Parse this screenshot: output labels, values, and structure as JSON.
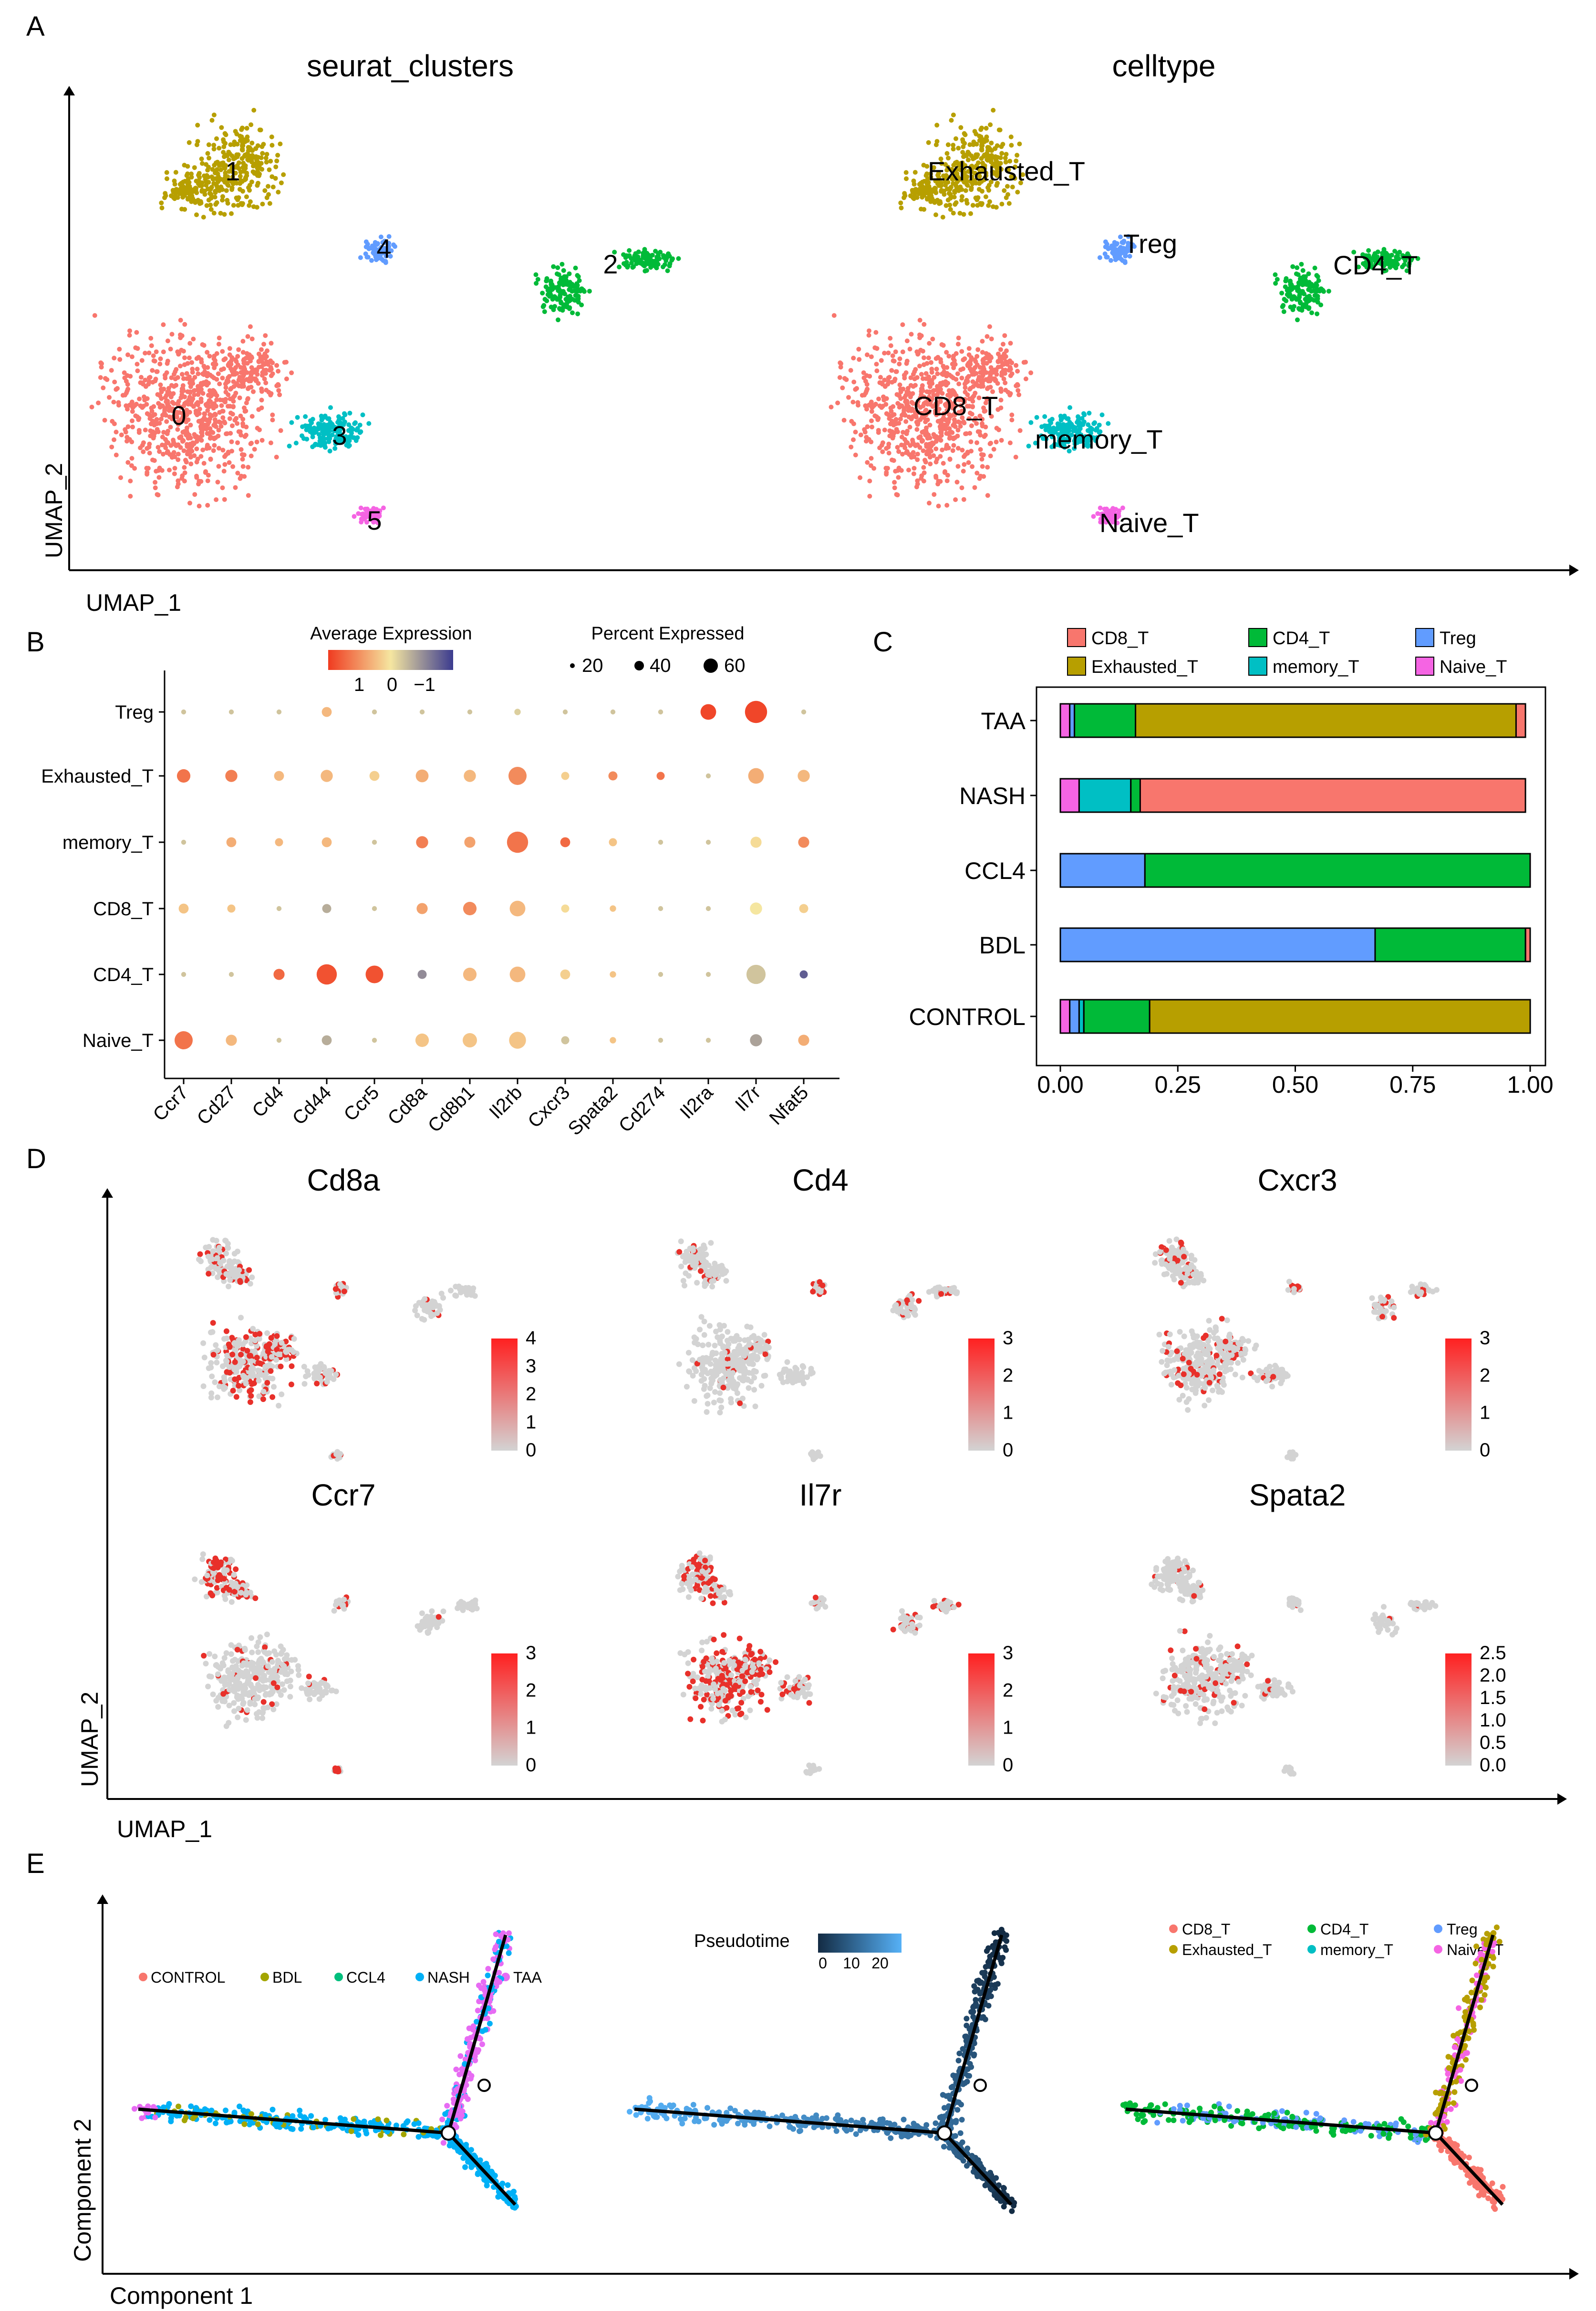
{
  "panels": {
    "A": "A",
    "B": "B",
    "C": "C",
    "D": "D",
    "E": "E"
  },
  "colors": {
    "CD8_T": "#F8766D",
    "Exhausted_T": "#B79F00",
    "CD4_T": "#00BA38",
    "memory_T": "#00BFC4",
    "Treg": "#619CFF",
    "Naive_T": "#F564E3",
    "grey": "#d3d3d3",
    "red": "#e8302a"
  },
  "chart_data": [
    {
      "id": "A-left",
      "type": "scatter",
      "title": "seurat_clusters",
      "xlabel": "UMAP_1",
      "ylabel": "UMAP_2",
      "cluster_labels": [
        {
          "label": "0",
          "cell": "CD8_T"
        },
        {
          "label": "1",
          "cell": "Exhausted_T"
        },
        {
          "label": "2",
          "cell": "CD4_T"
        },
        {
          "label": "3",
          "cell": "memory_T"
        },
        {
          "label": "4",
          "cell": "Treg"
        },
        {
          "label": "5",
          "cell": "Naive_T"
        }
      ]
    },
    {
      "id": "A-right",
      "type": "scatter",
      "title": "celltype",
      "cluster_labels": [
        {
          "label": "CD8_T",
          "cell": "CD8_T"
        },
        {
          "label": "Exhausted_T",
          "cell": "Exhausted_T"
        },
        {
          "label": "CD4_T",
          "cell": "CD4_T"
        },
        {
          "label": "memory_T",
          "cell": "memory_T"
        },
        {
          "label": "Treg",
          "cell": "Treg"
        },
        {
          "label": "Naive_T",
          "cell": "Naive_T"
        }
      ]
    },
    {
      "id": "B",
      "type": "dot",
      "legend_expr_title": "Average Expression",
      "legend_expr_ticks": [
        "1",
        "0",
        "−1"
      ],
      "legend_pct_title": "Percent Expressed",
      "legend_pct_ticks": [
        "20",
        "40",
        "60"
      ],
      "rows": [
        "Treg",
        "Exhausted_T",
        "memory_T",
        "CD8_T",
        "CD4_T",
        "Naive_T"
      ],
      "genes": [
        "Ccr7",
        "Cd27",
        "Cd4",
        "Cd44",
        "Ccr5",
        "Cd8a",
        "Cd8b1",
        "Il2rb",
        "Cxcr3",
        "Spata2",
        "Cd274",
        "Il2ra",
        "Il7r",
        "Nfat5"
      ],
      "expr": [
        [
          -0.3,
          -0.3,
          -0.3,
          0.4,
          -0.3,
          -0.3,
          -0.3,
          -0.2,
          -0.3,
          -0.3,
          -0.3,
          1.4,
          1.4,
          -0.3
        ],
        [
          1.0,
          0.9,
          0.4,
          0.4,
          0.2,
          0.5,
          0.4,
          0.8,
          0.2,
          0.8,
          1.0,
          -0.3,
          0.5,
          0.4
        ],
        [
          -0.3,
          0.5,
          0.4,
          0.4,
          -0.3,
          0.9,
          0.6,
          1.0,
          1.1,
          0.3,
          -0.3,
          -0.3,
          0.1,
          0.8
        ],
        [
          0.3,
          0.3,
          -0.3,
          -0.5,
          -0.3,
          0.6,
          0.8,
          0.4,
          0.1,
          0.3,
          -0.3,
          -0.3,
          0.0,
          0.2
        ],
        [
          -0.3,
          -0.3,
          1.1,
          1.3,
          1.3,
          -0.8,
          0.4,
          0.4,
          0.2,
          0.3,
          -0.3,
          -0.3,
          -0.3,
          -1.2
        ],
        [
          1.0,
          0.4,
          -0.3,
          -0.5,
          -0.3,
          0.3,
          0.3,
          0.3,
          -0.3,
          0.3,
          -0.3,
          -0.3,
          -0.6,
          0.5
        ]
      ],
      "pct": [
        [
          3,
          3,
          3,
          12,
          3,
          3,
          3,
          5,
          3,
          3,
          3,
          30,
          60,
          3
        ],
        [
          22,
          18,
          12,
          18,
          12,
          20,
          18,
          40,
          8,
          10,
          8,
          3,
          30,
          18
        ],
        [
          3,
          12,
          8,
          12,
          3,
          18,
          15,
          55,
          12,
          8,
          3,
          3,
          15,
          15
        ],
        [
          12,
          8,
          3,
          10,
          3,
          15,
          22,
          30,
          8,
          5,
          3,
          3,
          18,
          10
        ],
        [
          3,
          3,
          15,
          50,
          38,
          10,
          22,
          30,
          12,
          5,
          3,
          3,
          45,
          8
        ],
        [
          40,
          15,
          3,
          12,
          3,
          22,
          25,
          35,
          8,
          5,
          3,
          3,
          18,
          15
        ]
      ]
    },
    {
      "id": "C",
      "type": "bar",
      "orientation": "horizontal",
      "stacked": true,
      "categories": [
        "TAA",
        "NASH",
        "CCL4",
        "BDL",
        "CONTROL"
      ],
      "stack_order": [
        "Naive_T",
        "Treg",
        "memory_T",
        "CD4_T",
        "Exhausted_T",
        "CD8_T"
      ],
      "series": [
        {
          "name": "CD8_T",
          "values": [
            0.02,
            0.82,
            0.0,
            0.01,
            0.0
          ]
        },
        {
          "name": "Exhausted_T",
          "values": [
            0.81,
            0.0,
            0.0,
            0.0,
            0.81
          ]
        },
        {
          "name": "CD4_T",
          "values": [
            0.13,
            0.02,
            0.82,
            0.32,
            0.14
          ]
        },
        {
          "name": "memory_T",
          "values": [
            0.0,
            0.11,
            0.0,
            0.0,
            0.01
          ]
        },
        {
          "name": "Treg",
          "values": [
            0.01,
            0.0,
            0.18,
            0.67,
            0.02
          ]
        },
        {
          "name": "Naive_T",
          "values": [
            0.02,
            0.04,
            0.0,
            0.0,
            0.02
          ]
        }
      ],
      "legend_labels": [
        "CD8_T",
        "CD4_T",
        "Treg",
        "Exhausted_T",
        "memory_T",
        "Naive_T"
      ],
      "xticks": [
        "0.00",
        "0.25",
        "0.50",
        "0.75",
        "1.00"
      ],
      "xlim": [
        0,
        1
      ]
    },
    {
      "id": "D",
      "type": "scatter",
      "xlabel": "UMAP_1",
      "ylabel": "UMAP_2",
      "features": [
        {
          "gene": "Cd8a",
          "scale": [
            "4",
            "3",
            "2",
            "1",
            "0"
          ]
        },
        {
          "gene": "Cd4",
          "scale": [
            "3",
            "2",
            "1",
            "0"
          ]
        },
        {
          "gene": "Cxcr3",
          "scale": [
            "3",
            "2",
            "1",
            "0"
          ]
        },
        {
          "gene": "Ccr7",
          "scale": [
            "3",
            "2",
            "1",
            "0"
          ]
        },
        {
          "gene": "Il7r",
          "scale": [
            "3",
            "2",
            "1",
            "0"
          ]
        },
        {
          "gene": "Spata2",
          "scale": [
            "2.5",
            "2.0",
            "1.5",
            "1.0",
            "0.5",
            "0.0"
          ]
        }
      ]
    },
    {
      "id": "E",
      "type": "scatter",
      "xlabel": "Component 1",
      "ylabel": "Component 2",
      "group_legend": [
        {
          "name": "CONTROL",
          "color": "#F8766D"
        },
        {
          "name": "BDL",
          "color": "#A3A500"
        },
        {
          "name": "CCL4",
          "color": "#00BF7D"
        },
        {
          "name": "NASH",
          "color": "#00B0F6"
        },
        {
          "name": "TAA",
          "color": "#E76BF3"
        }
      ],
      "pseudotime_title": "Pseudotime",
      "pseudotime_ticks": [
        "0",
        "10",
        "20"
      ],
      "cell_legend": [
        "CD8_T",
        "CD4_T",
        "Treg",
        "Exhausted_T",
        "memory_T",
        "Naive_T"
      ]
    }
  ]
}
